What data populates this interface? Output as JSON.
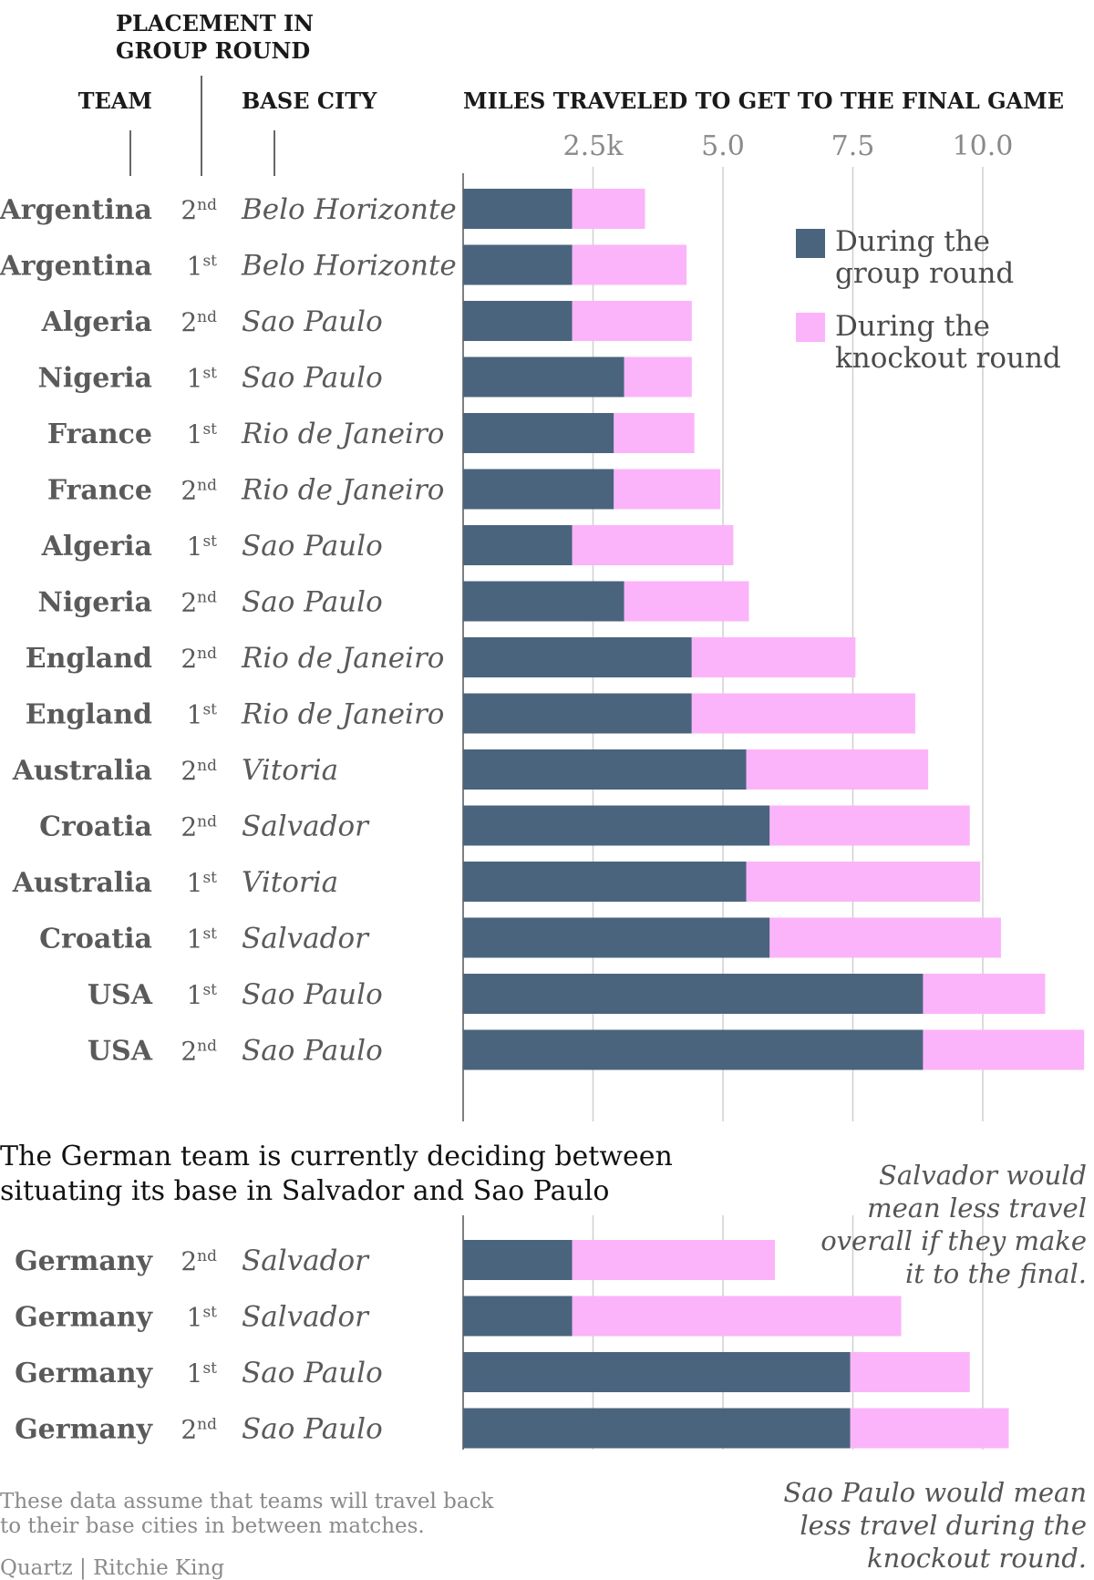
{
  "headers": {
    "team": "TEAM",
    "placement_line1": "PLACEMENT IN",
    "placement_line2": "GROUP ROUND",
    "base_city": "BASE CITY",
    "miles": "MILES TRAVELED TO GET TO THE FINAL GAME"
  },
  "legend": {
    "group_line1": "During the",
    "group_line2": "group round",
    "knockout_line1": "During the",
    "knockout_line2": "knockout round"
  },
  "colors": {
    "group": "#4b647d",
    "knockout": "#fbb4fa",
    "grid": "#cfcfcf",
    "axis": "#555555"
  },
  "subtitle": {
    "line1": "The German team is currently deciding between",
    "line2": "situating its base in Salvador and Sao Paulo"
  },
  "notes": {
    "salvador": [
      "Salvador would",
      "mean less travel",
      "overall if they make",
      "it to the final."
    ],
    "saopaulo": [
      "Sao Paulo would mean",
      "less travel during the",
      "knockout round."
    ]
  },
  "footnote": {
    "line1": "These data assume that teams will travel back",
    "line2": "to their base cities in between matches.",
    "credit": "Quartz | Ritchie King"
  },
  "chart_data": {
    "type": "bar",
    "orientation": "horizontal",
    "stacked": true,
    "xlabel": "MILES TRAVELED TO GET TO THE FINAL GAME",
    "xlim": [
      0,
      12000
    ],
    "ticks": [
      {
        "value": 2500,
        "label": "2.5k"
      },
      {
        "value": 5000,
        "label": "5.0"
      },
      {
        "value": 7500,
        "label": "7.5"
      },
      {
        "value": 10000,
        "label": "10.0"
      }
    ],
    "grid": true,
    "legend_position": "top-right",
    "series": [
      {
        "name": "During the group round",
        "key": "group"
      },
      {
        "name": "During the knockout round",
        "key": "knockout"
      }
    ],
    "rows": [
      {
        "team": "Argentina",
        "place_num": "2",
        "place_suffix": "nd",
        "city": "Belo Horizonte",
        "group": 2100,
        "knockout": 1400
      },
      {
        "team": "Argentina",
        "place_num": "1",
        "place_suffix": "st",
        "city": "Belo Horizonte",
        "group": 2100,
        "knockout": 2200
      },
      {
        "team": "Algeria",
        "place_num": "2",
        "place_suffix": "nd",
        "city": "Sao Paulo",
        "group": 2100,
        "knockout": 2300
      },
      {
        "team": "Nigeria",
        "place_num": "1",
        "place_suffix": "st",
        "city": "Sao Paulo",
        "group": 3100,
        "knockout": 1300
      },
      {
        "team": "France",
        "place_num": "1",
        "place_suffix": "st",
        "city": "Rio de Janeiro",
        "group": 2900,
        "knockout": 1550
      },
      {
        "team": "France",
        "place_num": "2",
        "place_suffix": "nd",
        "city": "Rio de Janeiro",
        "group": 2900,
        "knockout": 2050
      },
      {
        "team": "Algeria",
        "place_num": "1",
        "place_suffix": "st",
        "city": "Sao Paulo",
        "group": 2100,
        "knockout": 3100
      },
      {
        "team": "Nigeria",
        "place_num": "2",
        "place_suffix": "nd",
        "city": "Sao Paulo",
        "group": 3100,
        "knockout": 2400
      },
      {
        "team": "England",
        "place_num": "2",
        "place_suffix": "nd",
        "city": "Rio de Janeiro",
        "group": 4400,
        "knockout": 3150
      },
      {
        "team": "England",
        "place_num": "1",
        "place_suffix": "st",
        "city": "Rio de Janeiro",
        "group": 4400,
        "knockout": 4300
      },
      {
        "team": "Australia",
        "place_num": "2",
        "place_suffix": "nd",
        "city": "Vitoria",
        "group": 5450,
        "knockout": 3500
      },
      {
        "team": "Croatia",
        "place_num": "2",
        "place_suffix": "nd",
        "city": "Salvador",
        "group": 5900,
        "knockout": 3850
      },
      {
        "team": "Australia",
        "place_num": "1",
        "place_suffix": "st",
        "city": "Vitoria",
        "group": 5450,
        "knockout": 4500
      },
      {
        "team": "Croatia",
        "place_num": "1",
        "place_suffix": "st",
        "city": "Salvador",
        "group": 5900,
        "knockout": 4450
      },
      {
        "team": "USA",
        "place_num": "1",
        "place_suffix": "st",
        "city": "Sao Paulo",
        "group": 8850,
        "knockout": 2350
      },
      {
        "team": "USA",
        "place_num": "2",
        "place_suffix": "nd",
        "city": "Sao Paulo",
        "group": 8850,
        "knockout": 3100
      }
    ],
    "germany_rows": [
      {
        "team": "Germany",
        "place_num": "2",
        "place_suffix": "nd",
        "city": "Salvador",
        "group": 2100,
        "knockout": 3900
      },
      {
        "team": "Germany",
        "place_num": "1",
        "place_suffix": "st",
        "city": "Salvador",
        "group": 2100,
        "knockout": 6330
      },
      {
        "team": "Germany",
        "place_num": "1",
        "place_suffix": "st",
        "city": "Sao Paulo",
        "group": 7450,
        "knockout": 2300
      },
      {
        "team": "Germany",
        "place_num": "2",
        "place_suffix": "nd",
        "city": "Sao Paulo",
        "group": 7450,
        "knockout": 3050
      }
    ]
  }
}
